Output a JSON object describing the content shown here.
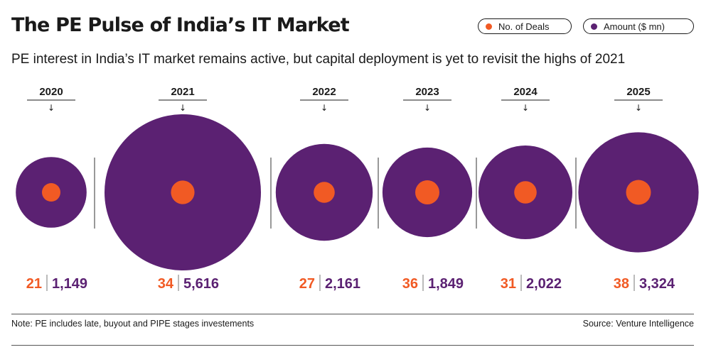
{
  "header": {
    "title": "The PE Pulse of India’s IT Market",
    "subtitle": "PE interest in India’s IT market remains active, but capital deployment is yet to revisit the highs of 2021"
  },
  "legend": [
    {
      "label": "No. of Deals",
      "color": "#f15a24"
    },
    {
      "label": "Amount ($ mn)",
      "color": "#5b2172"
    }
  ],
  "colors": {
    "deals": "#f15a24",
    "amount": "#5b2172",
    "text": "#1a1a1a"
  },
  "arrow_glyph": "↓",
  "chart_data": {
    "type": "bubble",
    "title": "The PE Pulse of India’s IT Market",
    "categories": [
      "2020",
      "2021",
      "2022",
      "2023",
      "2024",
      "2025"
    ],
    "series": [
      {
        "name": "No. of Deals",
        "values": [
          21,
          34,
          27,
          36,
          31,
          38
        ],
        "labels": [
          "21",
          "34",
          "27",
          "36",
          "31",
          "38"
        ]
      },
      {
        "name": "Amount ($ mn)",
        "values": [
          1149,
          5616,
          2161,
          1849,
          2022,
          3324
        ],
        "labels": [
          "1,149",
          "5,616",
          "2,161",
          "1,849",
          "2,022",
          "3,324"
        ]
      }
    ],
    "encoding": "nested circles"
  },
  "footer": {
    "note": "Note: PE includes late, buyout and PIPE stages investements",
    "source": "Source: Venture Intelligence"
  }
}
